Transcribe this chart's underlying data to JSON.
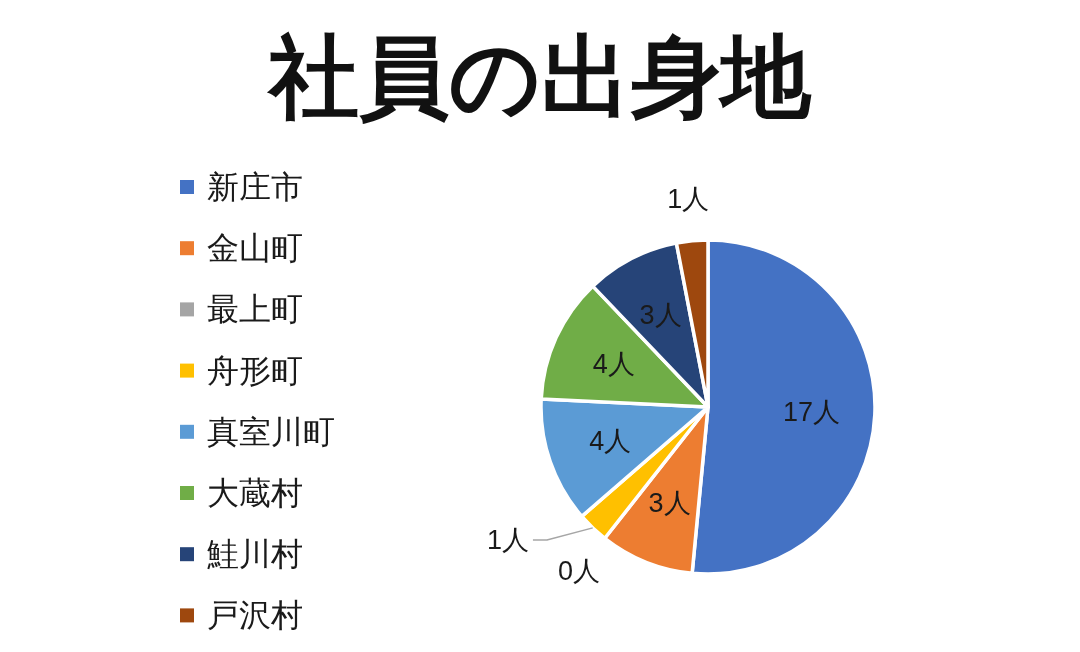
{
  "chart_data": {
    "type": "pie",
    "title": "社員の出身地",
    "categories": [
      "新庄市",
      "金山町",
      "最上町",
      "舟形町",
      "真室川町",
      "大蔵村",
      "鮭川村",
      "戸沢村"
    ],
    "values": [
      17,
      3,
      0,
      1,
      4,
      4,
      3,
      1
    ],
    "colors": [
      "#4472c4",
      "#ed7d31",
      "#a5a5a5",
      "#ffc000",
      "#5b9bd5",
      "#70ad47",
      "#264478",
      "#9e480e"
    ],
    "value_labels": [
      "17人",
      "3人",
      "0人",
      "1人",
      "4人",
      "4人",
      "3人",
      "1人"
    ],
    "legend": "left"
  }
}
